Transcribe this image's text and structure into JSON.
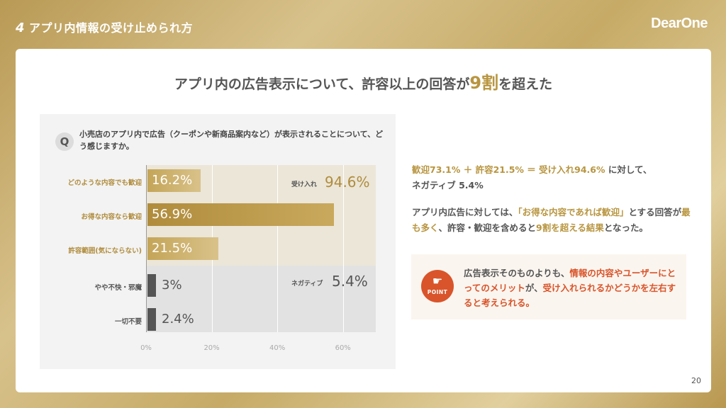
{
  "header": {
    "section_number": "4",
    "title": "アプリ内情報の受け止められ方",
    "brand": "DearOne"
  },
  "headline": {
    "pre": "アプリ内の広告表示について、許容以上の回答が",
    "highlight": "9割",
    "post": "を超えた"
  },
  "question": {
    "badge": "Q",
    "text": "小売店のアプリ内で広告（クーポンや新商品案内など）が表示されることについて、どう感じますか。"
  },
  "chart_data": {
    "type": "bar",
    "orientation": "horizontal",
    "categories": [
      "どのような内容でも歓迎",
      "お得な内容なら歓迎",
      "許容範囲(気にならない)",
      "やや不快・邪魔",
      "一切不要"
    ],
    "values": [
      16.2,
      56.9,
      21.5,
      3,
      2.4
    ],
    "value_labels": [
      "16.2%",
      "56.9%",
      "21.5%",
      "3%",
      "2.4%"
    ],
    "xlim": [
      0,
      70
    ],
    "xticks": [
      "0%",
      "20%",
      "40%",
      "60%"
    ],
    "groups": [
      {
        "label": "受け入れ",
        "value": "94.6%"
      },
      {
        "label": "ネガティブ",
        "value": "5.4%"
      }
    ],
    "colors": {
      "positive_dark": "#b08c3c",
      "positive_light": "#d9c28a",
      "negative": "#555555",
      "positive_band": "#ebe6d8",
      "negative_band": "#e2e2e2"
    }
  },
  "summary": {
    "line1_gold": "歓迎73.1% ＋ 許容21.5% ＝ 受け入れ94.6%",
    "line1_rest": "に対して、",
    "line2": "ネガティブ 5.4%",
    "p2_a": "アプリ内広告に対しては、",
    "p2_b": "「お得な内容であれば歓迎」",
    "p2_c": "とする回答が",
    "p2_d": "最も多く",
    "p2_e": "、許容・歓迎を含めると",
    "p2_f": "9割",
    "p2_g": "を超える結果",
    "p2_h": "となった。"
  },
  "point": {
    "badge": "POINT",
    "t1": "広告表示そのものよりも、",
    "t2": "情報の内容やユーザーにとってのメリット",
    "t3": "が、",
    "t4": "受け入れられるかどうかを左右すると考えられる。"
  },
  "page_number": "20"
}
